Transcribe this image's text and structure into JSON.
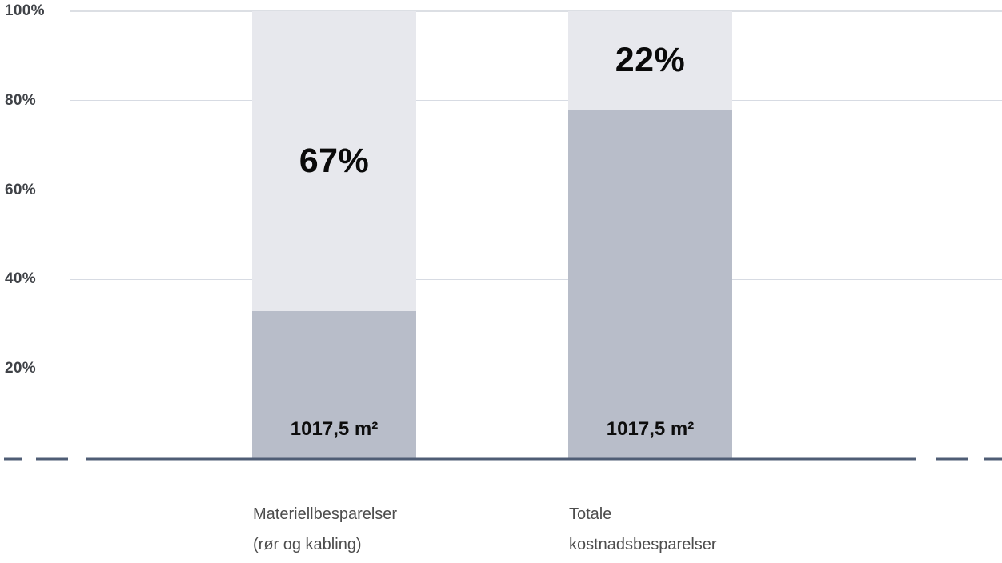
{
  "chart_data": {
    "type": "bar",
    "variant": "stacked-percentage-column",
    "title": "",
    "legend": false,
    "grid": true,
    "y_axis": {
      "range": [
        0,
        100
      ],
      "unit": "%",
      "ticks": [
        {
          "value": 100,
          "label": "100%"
        },
        {
          "value": 80,
          "label": "80%"
        },
        {
          "value": 60,
          "label": "60%"
        },
        {
          "value": 40,
          "label": "40%"
        },
        {
          "value": 20,
          "label": "20%"
        }
      ]
    },
    "categories": [
      "Materiellbesparelser (rør og kabling)",
      "Totale kostnadsbesparelser"
    ],
    "bars": [
      {
        "category_lines": [
          "Materiellbesparelser",
          "(rør og kabling)"
        ],
        "segments": [
          {
            "name": "base",
            "value": 33,
            "label": "1017,5 m²",
            "label_placement": "bottom",
            "color": "#b8bdc9"
          },
          {
            "name": "savings",
            "value": 67,
            "label": "67%",
            "label_placement": "center",
            "color": "#e7e8ed"
          }
        ]
      },
      {
        "category_lines": [
          "Totale",
          "kostnadsbesparelser"
        ],
        "segments": [
          {
            "name": "base",
            "value": 78,
            "label": "1017,5 m²",
            "label_placement": "bottom",
            "color": "#b8bdc9"
          },
          {
            "name": "savings",
            "value": 22,
            "label": "22%",
            "label_placement": "center",
            "color": "#e7e8ed"
          }
        ]
      }
    ],
    "colors": {
      "segment_base": "#b8bdc9",
      "segment_savings": "#e7e8ed",
      "gridline": "#d7dbe3",
      "gridline_top": "#dcdfe4",
      "baseline": "#4f5d75",
      "tick_label": "#3f4247",
      "category_label": "#4d4d4d",
      "value_label": "#0a0a0a"
    }
  }
}
